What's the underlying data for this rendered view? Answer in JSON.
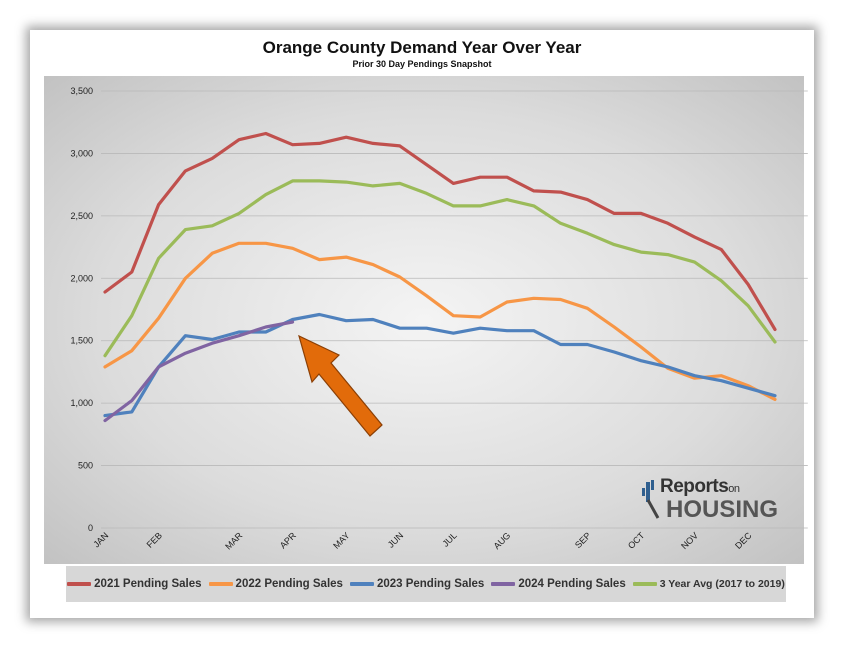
{
  "title": "Orange County Demand Year Over Year",
  "subtitle": "Prior 30 Day Pendings Snapshot",
  "logo": {
    "line1": "Reports",
    "line1_small": "on",
    "line2": "HOUSING"
  },
  "colors": {
    "accent_arrow": "#e26b0a"
  },
  "chart_data": {
    "type": "line",
    "ylim": [
      0,
      3500
    ],
    "yticks": [
      0,
      500,
      1000,
      1500,
      2000,
      2500,
      3000,
      3500
    ],
    "ytick_labels": [
      "0",
      "500",
      "1,000",
      "1,500",
      "2,000",
      "2,500",
      "3,000",
      "3,500"
    ],
    "x_count": 27,
    "x_ticks": [
      {
        "label": "JAN",
        "index": 0
      },
      {
        "label": "FEB",
        "index": 2
      },
      {
        "label": "MAR",
        "index": 5
      },
      {
        "label": "APR",
        "index": 7
      },
      {
        "label": "MAY",
        "index": 9
      },
      {
        "label": "JUN",
        "index": 11
      },
      {
        "label": "JUL",
        "index": 13
      },
      {
        "label": "AUG",
        "index": 15
      },
      {
        "label": "SEP",
        "index": 18
      },
      {
        "label": "OCT",
        "index": 20
      },
      {
        "label": "NOV",
        "index": 22
      },
      {
        "label": "DEC",
        "index": 24
      }
    ],
    "grid": true,
    "legend_position": "bottom",
    "series": [
      {
        "name": "2021 Pending Sales",
        "color": "#c0504d",
        "values": [
          1890,
          2050,
          2590,
          2860,
          2960,
          3110,
          3160,
          3070,
          3080,
          3130,
          3080,
          3060,
          2910,
          2760,
          2810,
          2810,
          2700,
          2690,
          2630,
          2520,
          2520,
          2440,
          2330,
          2230,
          1950,
          1590
        ]
      },
      {
        "name": "2022 Pending Sales",
        "color": "#f79646",
        "values": [
          1290,
          1420,
          1680,
          2000,
          2200,
          2280,
          2280,
          2240,
          2150,
          2170,
          2110,
          2010,
          1860,
          1700,
          1690,
          1810,
          1840,
          1830,
          1760,
          1610,
          1450,
          1280,
          1200,
          1220,
          1140,
          1030
        ]
      },
      {
        "name": "2023 Pending Sales",
        "color": "#4f81bd",
        "values": [
          900,
          930,
          1290,
          1540,
          1510,
          1570,
          1570,
          1670,
          1710,
          1660,
          1670,
          1600,
          1600,
          1560,
          1600,
          1580,
          1580,
          1470,
          1470,
          1410,
          1340,
          1290,
          1220,
          1180,
          1120,
          1060
        ]
      },
      {
        "name": "2024 Pending Sales",
        "color": "#8064a2",
        "values": [
          860,
          1020,
          1290,
          1400,
          1480,
          1540,
          1610,
          1650
        ]
      },
      {
        "name": "3 Year Avg (2017 to 2019)",
        "color": "#9bbb59",
        "values": [
          1380,
          1700,
          2160,
          2390,
          2420,
          2520,
          2670,
          2780,
          2780,
          2770,
          2740,
          2760,
          2680,
          2580,
          2580,
          2630,
          2580,
          2440,
          2360,
          2270,
          2210,
          2190,
          2130,
          1980,
          1780,
          1490
        ]
      }
    ]
  }
}
